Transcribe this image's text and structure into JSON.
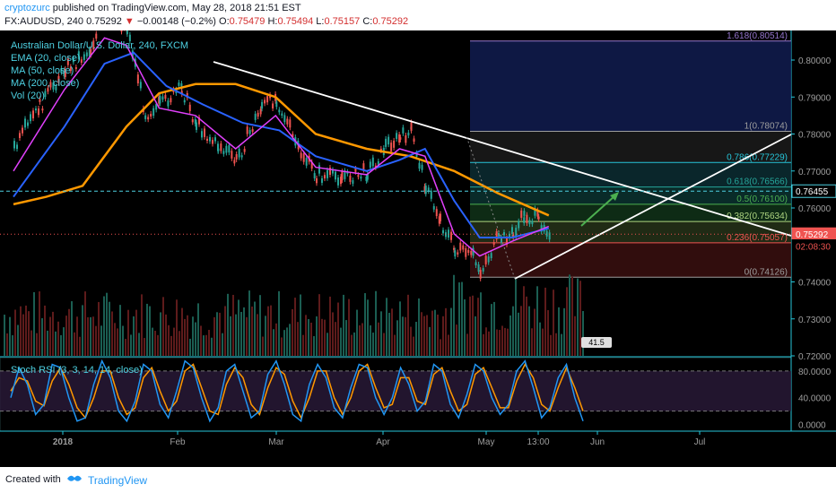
{
  "header": {
    "username": "cryptozurc",
    "published_text": " published on TradingView.com, May 28, 2018 21:51 EST",
    "symbol": "FX:AUDUSD, 240",
    "last": "0.75292",
    "change_arrow": "▼",
    "change": "−0.00148 (−0.2%)",
    "o_label": "O:",
    "o": "0.75479",
    "h_label": "H:",
    "h": "0.75494",
    "l_label": "L:",
    "l": "0.75157",
    "c_label": "C:",
    "c": "0.75292"
  },
  "legend": {
    "title": "Australian Dollar/U.S. Dollar, 240, FXCM",
    "items": [
      "EMA (20, close)",
      "MA (50, close)",
      "MA (200, close)",
      "Vol (20)"
    ]
  },
  "footer": {
    "created_with": "Created with",
    "brand": "TradingView"
  },
  "colors": {
    "background": "#000000",
    "up": "#26a69a",
    "down": "#ef5350",
    "ema20": "#e040fb",
    "ma50": "#2962ff",
    "ma200": "#ff9800",
    "trendline": "#ffffff",
    "arrow": "#4caf50",
    "stoch_k": "#2196f3",
    "stoch_d": "#ff9800"
  },
  "chart_data": [
    {
      "type": "line",
      "title": "Australian Dollar/U.S. Dollar, 240, FXCM",
      "x_ticks": [
        "2018",
        "Feb",
        "Mar",
        "Apr",
        "May",
        "13:00",
        "Jun",
        "Jul"
      ],
      "ylim": [
        0.72,
        0.808
      ],
      "y_ticks": [
        "0.80000",
        "0.79000",
        "0.78000",
        "0.77000",
        "0.76000",
        "0.74000",
        "0.73000",
        "0.72000"
      ],
      "price_labels": [
        {
          "name": "crosshair",
          "value": 0.76455,
          "text": "0.76455"
        },
        {
          "name": "last",
          "value": 0.75292,
          "text": "0.75292"
        },
        {
          "name": "countdown",
          "value": 0.7497,
          "text": "02:08:30"
        }
      ],
      "series": [
        {
          "name": "AUDUSD",
          "x": [
            "Jan 1",
            "Jan 8",
            "Jan 15",
            "Jan 22",
            "Jan 26",
            "Feb 1",
            "Feb 6",
            "Feb 10",
            "Feb 16",
            "Feb 20",
            "Feb 26",
            "Mar 3",
            "Mar 10",
            "Mar 14",
            "Mar 20",
            "Mar 25",
            "Apr 1",
            "Apr 8",
            "Apr 13",
            "Apr 17",
            "Apr 20",
            "Apr 24",
            "Apr 28",
            "May 2",
            "May 7",
            "May 9",
            "May 14",
            "May 18",
            "May 21",
            "May 25",
            "May 28"
          ],
          "y": [
            0.775,
            0.787,
            0.797,
            0.802,
            0.812,
            0.808,
            0.785,
            0.787,
            0.792,
            0.782,
            0.776,
            0.772,
            0.787,
            0.789,
            0.775,
            0.768,
            0.7675,
            0.769,
            0.776,
            0.778,
            0.78,
            0.765,
            0.756,
            0.748,
            0.746,
            0.742,
            0.751,
            0.752,
            0.757,
            0.756,
            0.7529
          ]
        },
        {
          "name": "EMA (20, close)",
          "x": [
            "Jan 1",
            "Jan 15",
            "Jan 26",
            "Feb 1",
            "Feb 10",
            "Feb 20",
            "Mar 3",
            "Mar 14",
            "Mar 25",
            "Apr 8",
            "Apr 17",
            "Apr 24",
            "May 2",
            "May 9",
            "May 18",
            "May 28"
          ],
          "y": [
            0.77,
            0.792,
            0.806,
            0.804,
            0.787,
            0.785,
            0.776,
            0.785,
            0.771,
            0.769,
            0.776,
            0.774,
            0.753,
            0.747,
            0.751,
            0.755
          ]
        },
        {
          "name": "MA (50, close)",
          "x": [
            "Jan 1",
            "Jan 15",
            "Jan 26",
            "Feb 3",
            "Feb 12",
            "Feb 22",
            "Mar 5",
            "Mar 15",
            "Mar 25",
            "Apr 8",
            "Apr 17",
            "Apr 24",
            "May 2",
            "May 9",
            "May 18",
            "May 28"
          ],
          "y": [
            0.763,
            0.782,
            0.799,
            0.802,
            0.793,
            0.788,
            0.783,
            0.781,
            0.774,
            0.77,
            0.773,
            0.776,
            0.762,
            0.752,
            0.752,
            0.7545
          ]
        },
        {
          "name": "MA (200, close)",
          "x": [
            "Jan 1",
            "Jan 10",
            "Jan 20",
            "Feb 1",
            "Feb 10",
            "Feb 20",
            "Mar 3",
            "Mar 14",
            "Mar 25",
            "Apr 8",
            "Apr 20",
            "May 2",
            "May 14",
            "May 28"
          ],
          "y": [
            0.761,
            0.763,
            0.766,
            0.782,
            0.791,
            0.7935,
            0.7935,
            0.79,
            0.78,
            0.776,
            0.774,
            0.77,
            0.764,
            0.758
          ]
        }
      ],
      "fibonacci": {
        "levels": [
          {
            "ratio": "1.618",
            "value": 0.80514,
            "text": "1.618(0.80514)",
            "color": "#9575cd"
          },
          {
            "ratio": "1",
            "value": 0.78074,
            "text": "1(0.78074)",
            "color": "#9e9e9e"
          },
          {
            "ratio": "0.786",
            "value": 0.77229,
            "text": "0.786(0.77229)",
            "color": "#26c6da"
          },
          {
            "ratio": "0.618",
            "value": 0.76566,
            "text": "0.618(0.76566)",
            "color": "#26a69a"
          },
          {
            "ratio": "0.5",
            "value": 0.761,
            "text": "0.5(0.76100)",
            "color": "#4caf50"
          },
          {
            "ratio": "0.382",
            "value": 0.75634,
            "text": "0.382(0.75634)",
            "color": "#aed581"
          },
          {
            "ratio": "0.236",
            "value": 0.75057,
            "text": "0.236(0.75057)",
            "color": "#ef5350"
          },
          {
            "ratio": "0",
            "value": 0.74126,
            "text": "0(0.74126)",
            "color": "#9e9e9e"
          }
        ]
      }
    },
    {
      "type": "bar",
      "title": "Vol (20)",
      "tag": "41.5",
      "ylim": [
        0,
        100
      ],
      "note": "volume histogram under price panel"
    },
    {
      "type": "line",
      "title": "Stoch RSI (3, 3, 14, 14, close)",
      "ylim": [
        -10,
        100
      ],
      "y_ticks": [
        "80.0000",
        "40.0000",
        "0.0000"
      ],
      "bands": [
        20,
        80
      ],
      "series": [
        {
          "name": "K",
          "y": [
            40,
            85,
            60,
            15,
            30,
            90,
            85,
            40,
            5,
            10,
            60,
            95,
            70,
            20,
            5,
            35,
            90,
            80,
            30,
            10,
            50,
            95,
            85,
            40,
            5,
            25,
            80,
            90,
            50,
            10,
            20,
            75,
            95,
            60,
            15,
            5,
            60,
            90,
            70,
            25,
            10,
            55,
            90,
            85,
            40,
            15,
            40,
            85,
            60,
            20,
            35,
            90,
            80,
            30,
            10,
            45,
            90,
            80,
            40,
            15,
            30,
            80,
            95,
            55,
            10,
            25,
            70,
            90,
            40,
            5
          ]
        },
        {
          "name": "D",
          "y": [
            50,
            70,
            65,
            35,
            28,
            65,
            85,
            60,
            25,
            10,
            40,
            80,
            80,
            40,
            15,
            25,
            70,
            85,
            50,
            20,
            35,
            80,
            90,
            55,
            20,
            15,
            60,
            85,
            70,
            30,
            15,
            55,
            85,
            75,
            35,
            10,
            40,
            80,
            80,
            40,
            15,
            40,
            80,
            90,
            55,
            25,
            30,
            70,
            70,
            35,
            30,
            75,
            85,
            50,
            20,
            30,
            75,
            85,
            55,
            25,
            25,
            65,
            90,
            70,
            30,
            20,
            55,
            85,
            55,
            20
          ]
        }
      ]
    }
  ]
}
